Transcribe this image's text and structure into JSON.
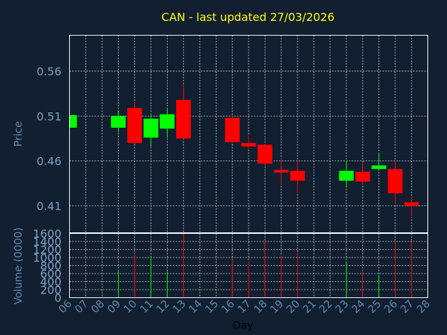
{
  "chart_data": [
    {
      "type": "candlestick",
      "title": "CAN - last updated 27/03/2026",
      "ylabel": "Price",
      "ylim": [
        0.38,
        0.6
      ],
      "yticks": [
        0.41,
        0.46,
        0.51,
        0.56
      ],
      "ytick_labels": [
        "0.41",
        "0.46",
        "0.51",
        "0.56"
      ],
      "grid": true,
      "colors": {
        "up": "#00ff00",
        "down": "#ff0000"
      },
      "candles": [
        {
          "day": 6,
          "open": 0.497,
          "high": 0.511,
          "low": 0.497,
          "close": 0.511
        },
        {
          "day": 9,
          "open": 0.497,
          "high": 0.515,
          "low": 0.492,
          "close": 0.51
        },
        {
          "day": 10,
          "open": 0.519,
          "high": 0.526,
          "low": 0.479,
          "close": 0.48
        },
        {
          "day": 11,
          "open": 0.486,
          "high": 0.513,
          "low": 0.476,
          "close": 0.507
        },
        {
          "day": 12,
          "open": 0.496,
          "high": 0.518,
          "low": 0.486,
          "close": 0.512
        },
        {
          "day": 13,
          "open": 0.528,
          "high": 0.545,
          "low": 0.484,
          "close": 0.485
        },
        {
          "day": 16,
          "open": 0.508,
          "high": 0.51,
          "low": 0.48,
          "close": 0.481
        },
        {
          "day": 17,
          "open": 0.48,
          "high": 0.49,
          "low": 0.473,
          "close": 0.476
        },
        {
          "day": 18,
          "open": 0.478,
          "high": 0.479,
          "low": 0.456,
          "close": 0.457
        },
        {
          "day": 19,
          "open": 0.45,
          "high": 0.463,
          "low": 0.434,
          "close": 0.447
        },
        {
          "day": 20,
          "open": 0.449,
          "high": 0.46,
          "low": 0.423,
          "close": 0.438
        },
        {
          "day": 23,
          "open": 0.438,
          "high": 0.46,
          "low": 0.43,
          "close": 0.449
        },
        {
          "day": 24,
          "open": 0.448,
          "high": 0.458,
          "low": 0.433,
          "close": 0.437
        },
        {
          "day": 25,
          "open": 0.451,
          "high": 0.468,
          "low": 0.45,
          "close": 0.455
        },
        {
          "day": 26,
          "open": 0.451,
          "high": 0.46,
          "low": 0.412,
          "close": 0.424
        },
        {
          "day": 27,
          "open": 0.414,
          "high": 0.42,
          "low": 0.397,
          "close": 0.41
        }
      ]
    },
    {
      "type": "bar",
      "ylabel": "Volume (0000)",
      "xlabel": "Day",
      "ylim": [
        0,
        1600
      ],
      "yticks": [
        0,
        200,
        400,
        600,
        800,
        1000,
        1200,
        1400,
        1600
      ],
      "ytick_labels": [
        "0",
        "200",
        "400",
        "600",
        "800",
        "1000",
        "1200",
        "1400",
        "1600"
      ],
      "xlim": [
        6,
        28
      ],
      "xticks": [
        6,
        7,
        8,
        9,
        10,
        11,
        12,
        13,
        14,
        15,
        16,
        17,
        18,
        19,
        20,
        21,
        22,
        23,
        24,
        25,
        26,
        27,
        28
      ],
      "xtick_labels": [
        "06",
        "07",
        "08",
        "09",
        "10",
        "11",
        "12",
        "13",
        "14",
        "15",
        "16",
        "17",
        "18",
        "19",
        "20",
        "21",
        "22",
        "23",
        "24",
        "25",
        "26",
        "27",
        "28"
      ],
      "grid": true,
      "volumes": [
        {
          "day": 6,
          "value": 0,
          "color": "#00ff00"
        },
        {
          "day": 9,
          "value": 700,
          "color": "#00ff00"
        },
        {
          "day": 10,
          "value": 1100,
          "color": "#ff0000"
        },
        {
          "day": 11,
          "value": 1020,
          "color": "#00ff00"
        },
        {
          "day": 12,
          "value": 650,
          "color": "#00ff00"
        },
        {
          "day": 13,
          "value": 1600,
          "color": "#ff0000"
        },
        {
          "day": 16,
          "value": 950,
          "color": "#ff0000"
        },
        {
          "day": 17,
          "value": 900,
          "color": "#ff0000"
        },
        {
          "day": 18,
          "value": 1400,
          "color": "#ff0000"
        },
        {
          "day": 19,
          "value": 1050,
          "color": "#ff0000"
        },
        {
          "day": 20,
          "value": 1150,
          "color": "#ff0000"
        },
        {
          "day": 23,
          "value": 900,
          "color": "#00ff00"
        },
        {
          "day": 24,
          "value": 680,
          "color": "#ff0000"
        },
        {
          "day": 25,
          "value": 570,
          "color": "#00ff00"
        },
        {
          "day": 26,
          "value": 1400,
          "color": "#ff0000"
        },
        {
          "day": 27,
          "value": 1380,
          "color": "#ff0000"
        }
      ]
    }
  ]
}
